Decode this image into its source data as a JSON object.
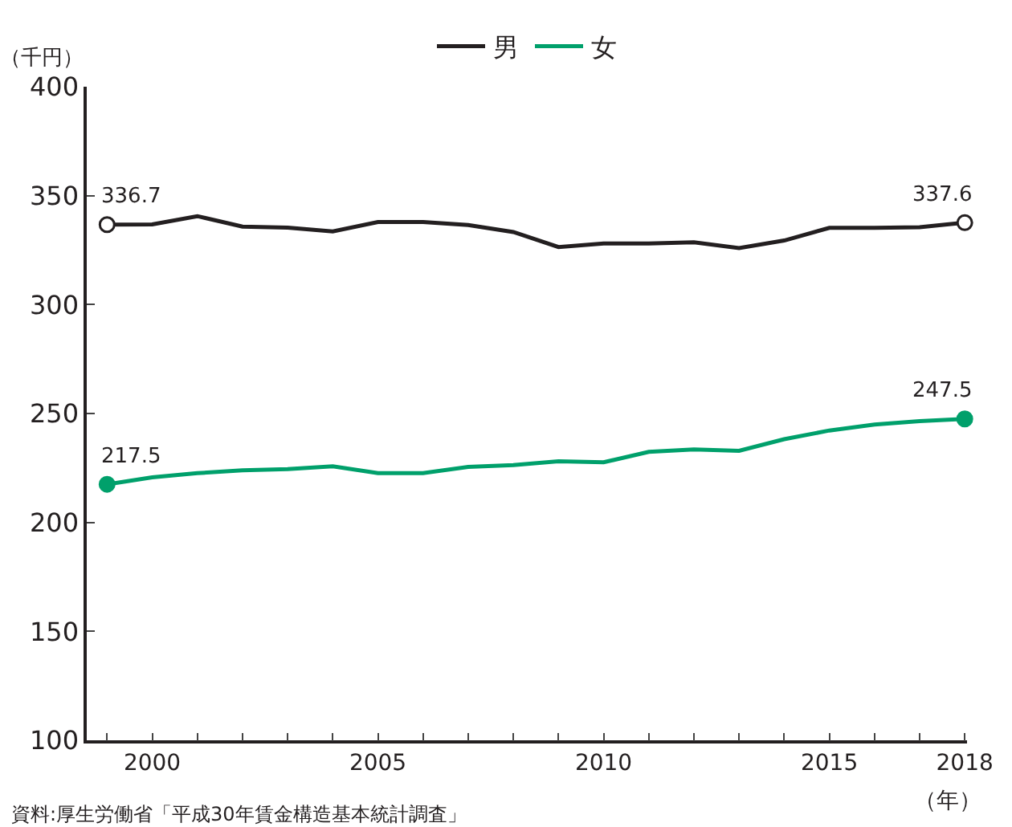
{
  "chart_data": {
    "type": "line",
    "ylabel": "（千円）",
    "xlabel": "（年）",
    "x": [
      1999,
      2000,
      2001,
      2002,
      2003,
      2004,
      2005,
      2006,
      2007,
      2008,
      2009,
      2010,
      2011,
      2012,
      2013,
      2014,
      2015,
      2016,
      2017,
      2018
    ],
    "series": [
      {
        "name": "男",
        "color": "#231f20",
        "values": [
          336.7,
          336.8,
          340.6,
          335.8,
          335.3,
          333.6,
          337.9,
          337.9,
          336.5,
          333.3,
          326.4,
          328.0,
          328.0,
          328.6,
          325.9,
          329.4,
          335.2,
          335.2,
          335.5,
          337.6
        ],
        "value_labels": [
          "336.7",
          null,
          null,
          null,
          null,
          null,
          null,
          null,
          null,
          null,
          null,
          null,
          null,
          null,
          null,
          null,
          null,
          null,
          null,
          "337.6"
        ]
      },
      {
        "name": "女",
        "color": "#00a06b",
        "values": [
          217.5,
          220.7,
          222.6,
          223.9,
          224.5,
          225.8,
          222.6,
          222.6,
          225.5,
          226.3,
          228.1,
          227.6,
          232.4,
          233.5,
          232.9,
          238.2,
          242.2,
          244.9,
          246.5,
          247.5
        ],
        "value_labels": [
          "217.5",
          null,
          null,
          null,
          null,
          null,
          null,
          null,
          null,
          null,
          null,
          null,
          null,
          null,
          null,
          null,
          null,
          null,
          null,
          "247.5"
        ]
      }
    ],
    "line_style": "solid",
    "xlim": [
      1998.55,
      2018.05
    ],
    "xticks": [
      {
        "value": 1999,
        "label": null
      },
      2000,
      {
        "value": 2001,
        "label": null
      },
      {
        "value": 2002,
        "label": null
      },
      {
        "value": 2003,
        "label": null
      },
      {
        "value": 2004,
        "label": null
      },
      2005,
      {
        "value": 2006,
        "label": null
      },
      {
        "value": 2007,
        "label": null
      },
      {
        "value": 2008,
        "label": null
      },
      {
        "value": 2009,
        "label": null
      },
      2010,
      {
        "value": 2011,
        "label": null
      },
      {
        "value": 2012,
        "label": null
      },
      {
        "value": 2013,
        "label": null
      },
      {
        "value": 2014,
        "label": null
      },
      2015,
      {
        "value": 2016,
        "label": null
      },
      {
        "value": 2017,
        "label": null
      },
      2018
    ],
    "ylim": [
      100,
      400
    ],
    "yticks": [
      100,
      150,
      200,
      250,
      300,
      350,
      400
    ],
    "legend": "top",
    "annotations": [
      "資料:厚生労働省「平成30年賃金構造基本統計調査」"
    ]
  }
}
